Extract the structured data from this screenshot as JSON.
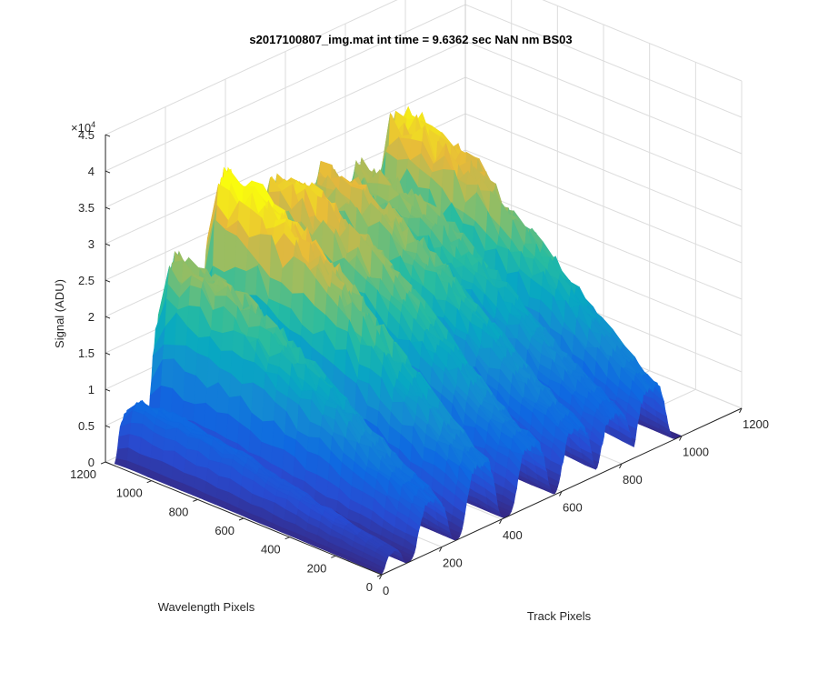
{
  "chart_data": {
    "type": "surface3d",
    "title": "s2017100807_img.mat int time = 9.6362 sec  NaN nm BS03",
    "xlabel": "Track Pixels",
    "ylabel": "Wavelength Pixels",
    "zlabel": "Signal (ADU)",
    "z_exponent_label": "×10",
    "z_exponent_power": "4",
    "xlim": [
      0,
      1200
    ],
    "ylim": [
      0,
      1200
    ],
    "zlim": [
      0,
      45000
    ],
    "x_ticks": [
      "0",
      "200",
      "400",
      "600",
      "800",
      "1000",
      "1200"
    ],
    "y_ticks": [
      "0",
      "200",
      "400",
      "600",
      "800",
      "1000",
      "1200"
    ],
    "z_ticks": [
      "0",
      "0.5",
      "1",
      "1.5",
      "2",
      "2.5",
      "3",
      "3.5",
      "4",
      "4.5"
    ],
    "colormap": "parula",
    "grid": true,
    "peaks_approx": [
      {
        "track_center": 40,
        "max_signal": 8500
      },
      {
        "track_center": 170,
        "max_signal": 25000
      },
      {
        "track_center": 330,
        "max_signal": 33000
      },
      {
        "track_center": 500,
        "max_signal": 30000
      },
      {
        "track_center": 650,
        "max_signal": 28000
      },
      {
        "track_center": 780,
        "max_signal": 26000
      },
      {
        "track_center": 900,
        "max_signal": 31000
      }
    ]
  }
}
